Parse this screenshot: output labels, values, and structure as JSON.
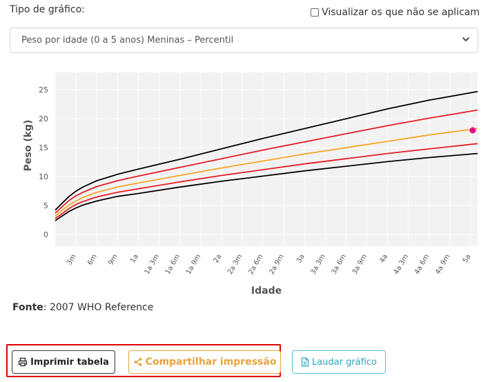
{
  "form": {
    "chart_type_label": "Tipo de gráfico:",
    "not_applicable_label": "Visualizar os que não se aplicam",
    "selected_chart": "Peso por idade (0 a 5 anos) Meninas – Percentil"
  },
  "source": {
    "prefix": "Fonte",
    "text": ": 2007 WHO Reference"
  },
  "buttons": {
    "print": "Imprimir tabela",
    "share": "Compartilhar impressão",
    "laudar": "Laudar gráfico"
  },
  "colors": {
    "p3_p97": "#000000",
    "p15_p85": "#e51c23",
    "p50": "#f5a623",
    "point": "#ec008c",
    "highlight": "#e00000"
  },
  "chart_data": {
    "type": "line",
    "xlabel": "Idade",
    "ylabel": "Peso (kg)",
    "ylim": [
      -2,
      28
    ],
    "yticks": [
      0,
      5,
      10,
      15,
      20,
      25
    ],
    "xlim": [
      0,
      61
    ],
    "x_ticks": [
      {
        "m": 3,
        "label": "3m"
      },
      {
        "m": 6,
        "label": "6m"
      },
      {
        "m": 9,
        "label": "9m"
      },
      {
        "m": 12,
        "label": "1a"
      },
      {
        "m": 15,
        "label": "1a 3m"
      },
      {
        "m": 18,
        "label": "1a 6m"
      },
      {
        "m": 21,
        "label": "1a 9m"
      },
      {
        "m": 24,
        "label": "2a"
      },
      {
        "m": 27,
        "label": "2a 3m"
      },
      {
        "m": 30,
        "label": "2a 6m"
      },
      {
        "m": 33,
        "label": "2a 9m"
      },
      {
        "m": 36,
        "label": "3a"
      },
      {
        "m": 39,
        "label": "3a 3m"
      },
      {
        "m": 42,
        "label": "3a 6m"
      },
      {
        "m": 45,
        "label": "3a 9m"
      },
      {
        "m": 48,
        "label": "4a"
      },
      {
        "m": 51,
        "label": "4a 3m"
      },
      {
        "m": 54,
        "label": "4a 6m"
      },
      {
        "m": 57,
        "label": "4a 9m"
      },
      {
        "m": 60,
        "label": "5a"
      }
    ],
    "x": [
      0,
      1,
      2,
      3,
      4,
      6,
      9,
      12,
      18,
      24,
      30,
      36,
      42,
      48,
      54,
      61
    ],
    "series": [
      {
        "color": "#000000",
        "values": [
          2.4,
          3.2,
          4.0,
          4.6,
          5.1,
          5.8,
          6.6,
          7.1,
          8.2,
          9.2,
          10.1,
          11.0,
          11.8,
          12.6,
          13.3,
          14.0
        ]
      },
      {
        "color": "#e51c23",
        "values": [
          2.8,
          3.6,
          4.5,
          5.2,
          5.7,
          6.5,
          7.3,
          7.9,
          9.1,
          10.2,
          11.2,
          12.2,
          13.1,
          14.0,
          14.8,
          15.7
        ]
      },
      {
        "color": "#f5a623",
        "values": [
          3.2,
          4.2,
          5.1,
          5.8,
          6.4,
          7.3,
          8.2,
          8.9,
          10.2,
          11.5,
          12.7,
          13.9,
          15.0,
          16.1,
          17.2,
          18.3
        ]
      },
      {
        "color": "#e51c23",
        "values": [
          3.7,
          4.8,
          5.9,
          6.7,
          7.3,
          8.3,
          9.3,
          10.1,
          11.6,
          13.1,
          14.6,
          16.0,
          17.4,
          18.8,
          20.1,
          21.5
        ]
      },
      {
        "color": "#000000",
        "values": [
          4.2,
          5.4,
          6.6,
          7.5,
          8.2,
          9.3,
          10.4,
          11.3,
          13.0,
          14.8,
          16.6,
          18.3,
          20.0,
          21.7,
          23.2,
          24.7
        ]
      }
    ],
    "points": [
      {
        "x": 60.3,
        "y": 18.0
      }
    ]
  }
}
